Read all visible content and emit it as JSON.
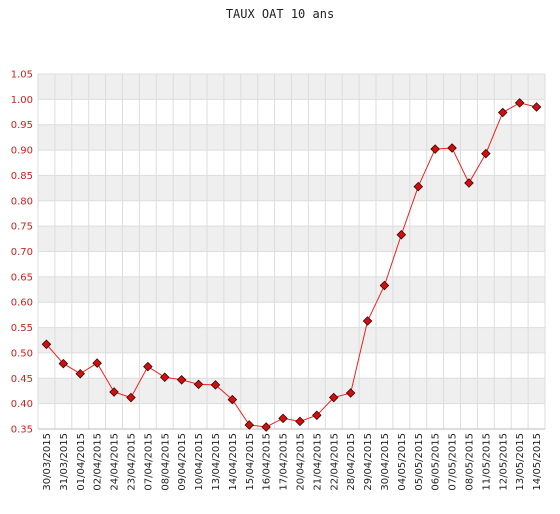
{
  "chart_data": {
    "type": "line",
    "title": "TAUX OAT 10 ans",
    "xlabel": "",
    "ylabel": "",
    "ylim": [
      0.35,
      1.05
    ],
    "yticks": [
      "0.35",
      "0.40",
      "0.45",
      "0.50",
      "0.55",
      "0.60",
      "0.65",
      "0.70",
      "0.75",
      "0.80",
      "0.85",
      "0.90",
      "0.95",
      "1.00",
      "1.05"
    ],
    "grid": true,
    "categories": [
      "30/03/2015",
      "31/03/2015",
      "01/04/2015",
      "02/04/2015",
      "24/04/2015",
      "23/04/2015",
      "07/04/2015",
      "08/04/2015",
      "09/04/2015",
      "10/04/2015",
      "13/04/2015",
      "14/04/2015",
      "15/04/2015",
      "16/04/2015",
      "17/04/2015",
      "20/04/2015",
      "21/04/2015",
      "22/04/2015",
      "28/04/2015",
      "29/04/2015",
      "30/04/2015",
      "04/05/2015",
      "05/05/2015",
      "06/05/2015",
      "07/05/2015",
      "08/05/2015",
      "11/05/2015",
      "12/05/2015",
      "13/05/2015",
      "14/05/2015"
    ],
    "series": [
      {
        "values": [
          0.517,
          0.479,
          0.459,
          0.48,
          0.423,
          0.412,
          0.473,
          0.452,
          0.447,
          0.438,
          0.437,
          0.408,
          0.358,
          0.354,
          0.371,
          0.365,
          0.377,
          0.412,
          0.421,
          0.563,
          0.633,
          0.733,
          0.828,
          0.902,
          0.904,
          0.835,
          0.893,
          0.974,
          0.993,
          0.985
        ],
        "color": "#ee2222"
      }
    ],
    "colors": {
      "line": "#ee2222",
      "marker_fill": "#cc1111",
      "marker_stroke": "#440000",
      "band": "#efefef",
      "grid": "#dddddd",
      "ytick": "#cc2222"
    }
  }
}
